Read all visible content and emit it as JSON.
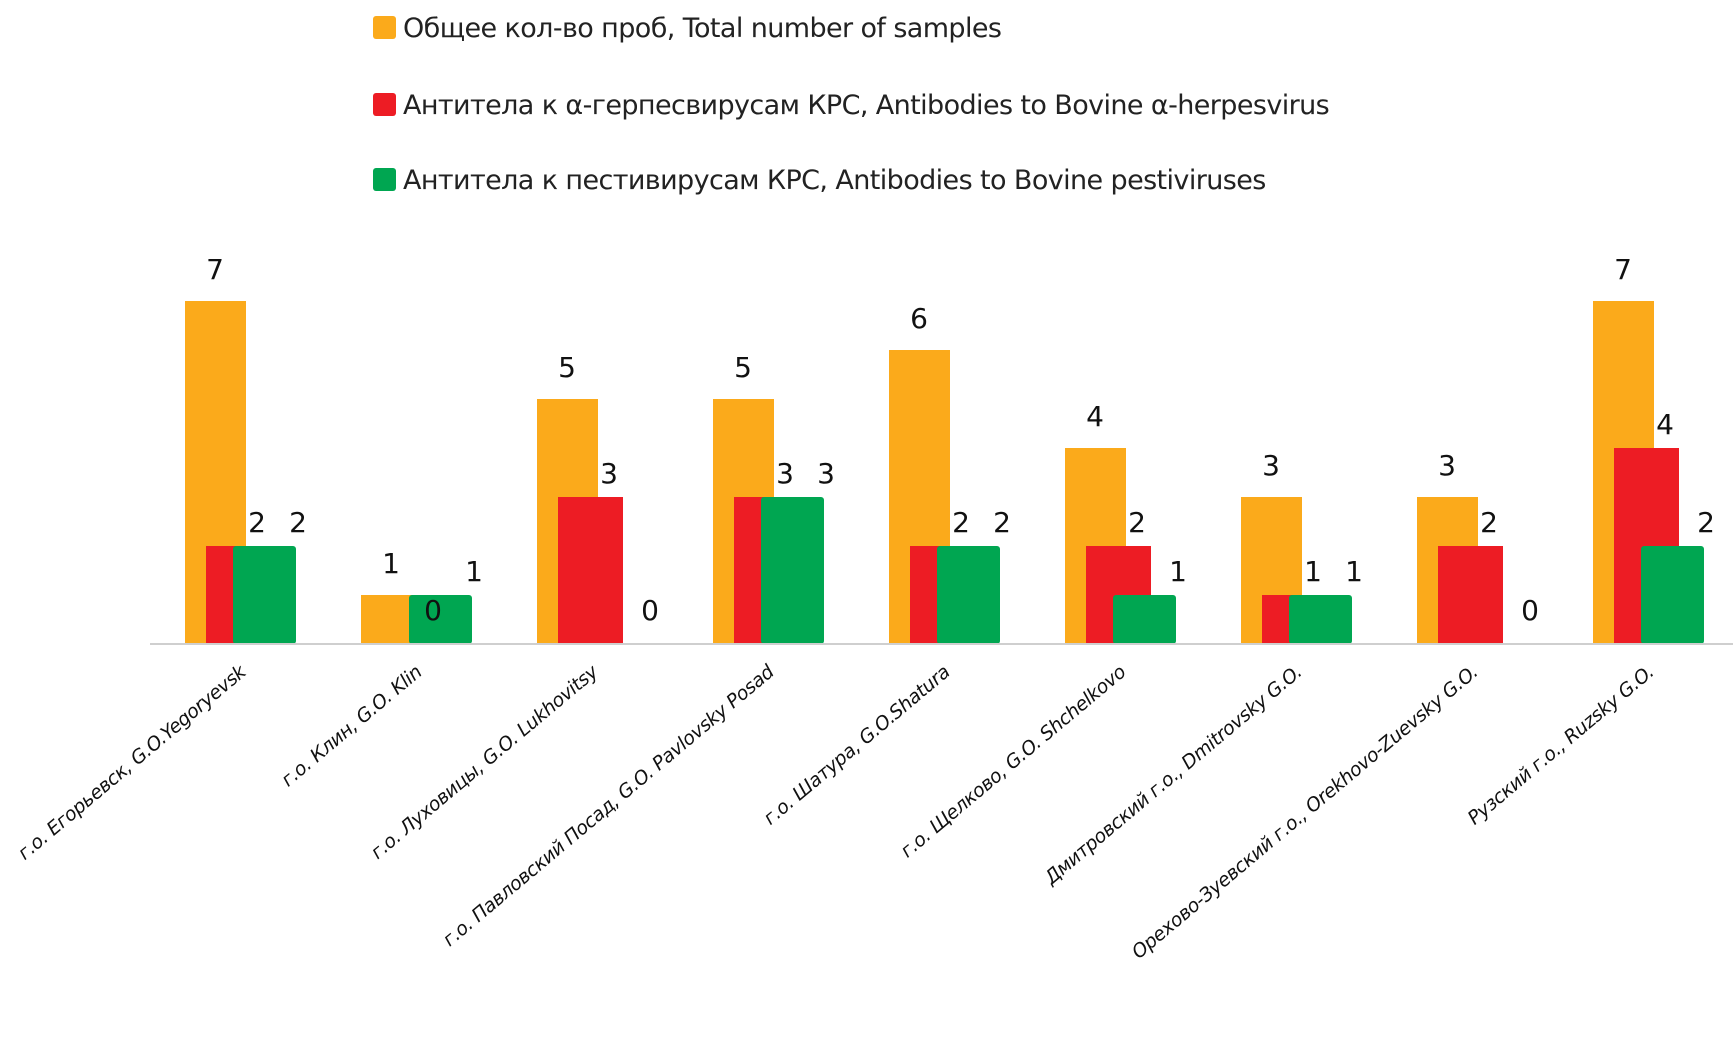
{
  "chart_data": {
    "type": "bar",
    "title": "",
    "xlabel": "",
    "ylabel": "",
    "ylim": [
      0,
      7
    ],
    "grid": false,
    "legend_position": "top-center",
    "categories": [
      "г.о. Егорьевск, G.O.Yegoryevsk",
      "г.о. Клин, G.O. Klin",
      "г.о. Луховицы, G.O. Lukhovitsy",
      "г.о. Павловский Посад, G.O. Pavlovsky Posad",
      "г.о. Шатура, G.O.Shatura",
      "г.о. Щелково, G.O. Shchelkovo",
      "Дмитровский г.о., Dmitrovsky G.O.",
      "Орехово-Зуевский г.о., Orekhovo-Zuevsky G.O.",
      "Рузский г.о., Ruzsky G.O."
    ],
    "series": [
      {
        "name": "Общее кол-во проб, Total number of samples",
        "color": "#FBAA1B",
        "values": [
          7,
          1,
          5,
          5,
          6,
          4,
          3,
          3,
          7
        ]
      },
      {
        "name": "Антитела к α-герпесвирусам КРС, Antibodies to Bovine α-herpesvirus",
        "color": "#ED1C24",
        "values": [
          2,
          0,
          3,
          3,
          2,
          2,
          1,
          2,
          4
        ]
      },
      {
        "name": "Антитела к пестивирусам КРС, Antibodies to Bovine pestiviruses",
        "color": "#00A651",
        "values": [
          2,
          1,
          0,
          3,
          2,
          1,
          1,
          0,
          2
        ]
      }
    ]
  }
}
